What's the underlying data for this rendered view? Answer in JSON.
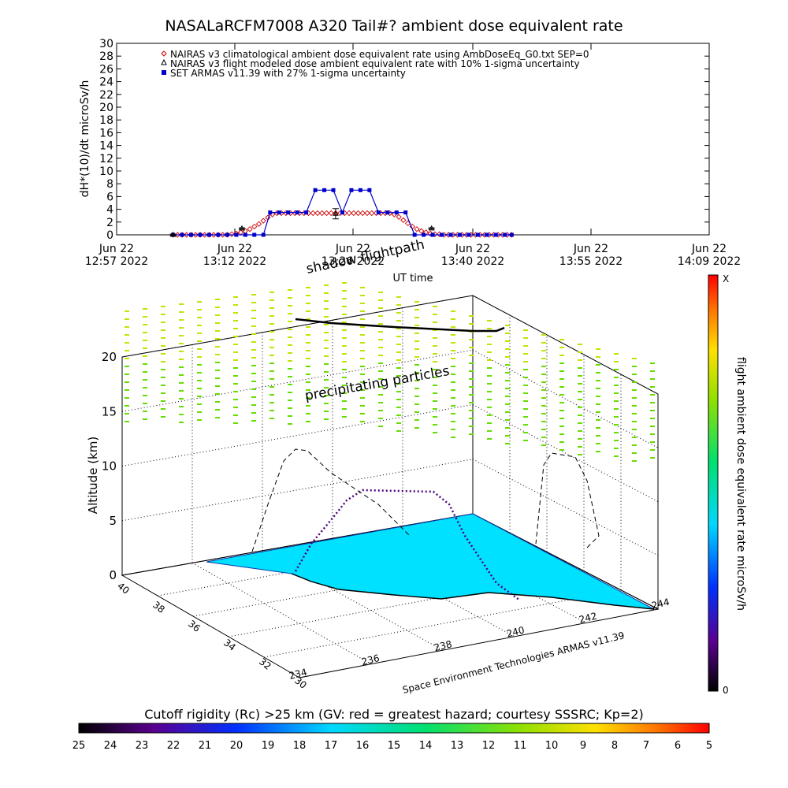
{
  "title": "NASALaRCFM7008  A320 Tail#? ambient dose equivalent rate",
  "chart_data": [
    {
      "type": "line",
      "ylabel": "dH*(10)/dt microSv/h",
      "xlabel": "UT time",
      "ylim": [
        0,
        30
      ],
      "yticks": [
        "0",
        "2",
        "4",
        "6",
        "8",
        "10",
        "12",
        "14",
        "16",
        "18",
        "20",
        "22",
        "24",
        "26",
        "28",
        "30"
      ],
      "xticks": [
        {
          "date": "Jun 22",
          "time": "12:57 2022"
        },
        {
          "date": "Jun 22",
          "time": "13:12 2022"
        },
        {
          "date": "Jun 22",
          "time": "13:26 2022"
        },
        {
          "date": "Jun 22",
          "time": "13:40 2022"
        },
        {
          "date": "Jun 22",
          "time": "13:55 2022"
        },
        {
          "date": "Jun 22",
          "time": "14:09 2022"
        }
      ],
      "legend": [
        {
          "label": "NAIRAS v3 climatological ambient dose equivalent rate using AmbDoseEq_G0.txt SEP=0",
          "marker": "diamond",
          "color": "#cc0000"
        },
        {
          "label": "NAIRAS v3 flight modeled dose ambient equivalent rate with 10% 1-sigma uncertainty",
          "marker": "triangle",
          "color": "#000000"
        },
        {
          "label": "SET ARMAS v11.39 with 27% 1-sigma uncertainty",
          "marker": "square",
          "color": "#0000cc"
        }
      ],
      "series": [
        {
          "name": "NAIRAS v3 climatological ambient dose equivalent rate using AmbDoseEq_G0.txt SEP=0",
          "x": [
            13.0,
            13.08,
            13.16,
            13.24,
            13.32,
            13.4,
            13.48,
            13.56,
            13.64,
            13.72,
            13.8,
            13.88,
            13.96,
            14.04,
            14.12,
            14.2,
            14.28,
            14.36,
            14.44,
            14.52,
            14.6,
            14.68,
            14.76,
            14.84,
            14.92,
            15.0,
            15.08,
            15.16,
            15.24,
            15.32,
            15.4,
            15.48,
            15.56,
            15.64,
            15.72,
            15.8,
            15.88,
            15.96,
            16.04,
            16.12,
            16.2,
            16.28,
            16.36,
            16.44,
            16.52,
            16.6,
            16.68,
            16.76,
            16.84,
            16.92,
            17.0,
            17.08,
            17.16,
            17.24,
            17.32,
            17.4,
            17.48,
            17.56,
            17.64,
            17.72,
            17.8,
            17.88,
            17.96,
            18.04,
            18.12,
            18.2,
            18.28,
            18.36,
            18.44,
            18.52,
            18.6,
            18.68,
            18.76,
            18.84,
            18.92,
            19.0
          ],
          "values": [
            0,
            0,
            0,
            0,
            0,
            0,
            0,
            0,
            0,
            0,
            0,
            0,
            0,
            0.1,
            0.2,
            0.4,
            0.6,
            0.9,
            1.3,
            1.7,
            2.2,
            2.7,
            3.2,
            3.4,
            3.4,
            3.4,
            3.4,
            3.4,
            3.4,
            3.4,
            3.4,
            3.4,
            3.4,
            3.4,
            3.4,
            3.4,
            3.4,
            3.4,
            3.4,
            3.4,
            3.4,
            3.4,
            3.4,
            3.4,
            3.4,
            3.4,
            3.4,
            3.4,
            3.4,
            3.2,
            2.8,
            2.3,
            1.8,
            1.3,
            0.9,
            0.6,
            0.4,
            0.2,
            0.1,
            0.1,
            0,
            0,
            0,
            0,
            0,
            0,
            0,
            0,
            0,
            0,
            0,
            0,
            0,
            0,
            0,
            0
          ]
        },
        {
          "name": "NAIRAS v3 flight modeled dose ambient equivalent rate with 10% 1-sigma uncertainty",
          "x": [
            13.0,
            14.22,
            15.88,
            17.58
          ],
          "values": [
            0,
            1.0,
            3.3,
            1.0
          ],
          "error": [
            0.1,
            0.1,
            0.8,
            0.1
          ]
        },
        {
          "name": "SET ARMAS v11.39 with 27% 1-sigma uncertainty",
          "x": [
            13.0,
            13.16,
            13.32,
            13.48,
            13.64,
            13.8,
            13.96,
            14.12,
            14.28,
            14.44,
            14.6,
            14.72,
            14.88,
            15.04,
            15.2,
            15.36,
            15.52,
            15.68,
            15.84,
            16.0,
            16.16,
            16.32,
            16.48,
            16.64,
            16.8,
            16.96,
            17.12,
            17.28,
            17.44,
            17.6,
            17.76,
            17.92,
            18.08,
            18.24,
            18.4,
            18.56,
            18.72,
            18.88,
            19.0
          ],
          "values": [
            0,
            0,
            0,
            0,
            0,
            0,
            0,
            0,
            0,
            0,
            0,
            3.5,
            3.5,
            3.5,
            3.5,
            3.5,
            7.0,
            7.0,
            7.0,
            3.5,
            7.0,
            7.0,
            7.0,
            3.5,
            3.5,
            3.5,
            3.5,
            0,
            0,
            0,
            0,
            0,
            0,
            0,
            0,
            0,
            0,
            0,
            0
          ]
        }
      ],
      "xrange": [
        12.0,
        22.5
      ]
    },
    {
      "type": "3d-map",
      "zlabel": "Altitude (km)",
      "zticks": [
        "0",
        "5",
        "10",
        "15",
        "20"
      ],
      "lat_ticks": [
        "40",
        "38",
        "36",
        "34",
        "32",
        "30"
      ],
      "lon_ticks": [
        "234",
        "236",
        "238",
        "240",
        "242",
        "244"
      ],
      "annotations": [
        "shadow flightpath",
        "precipitating particles"
      ],
      "credit": "Space Environment Technologies ARMAS v11.39"
    }
  ],
  "colorbar_right": {
    "label": "flight ambient dose equivalent rate microSv/h",
    "max_label": "X",
    "min_label": "0"
  },
  "colorbar_bottom": {
    "label": "Cutoff rigidity (Rc) >25 km (GV: red = greatest hazard; courtesy SSSRC; Kp=2)",
    "ticks": [
      "25",
      "24",
      "23",
      "22",
      "21",
      "20",
      "19",
      "18",
      "17",
      "16",
      "15",
      "14",
      "13",
      "12",
      "11",
      "10",
      "9",
      "8",
      "7",
      "6",
      "5"
    ]
  },
  "colors": {
    "land": "#00e0ff",
    "diamond": "#cc0000",
    "armas": "#0000cc",
    "particles": "#66dd00"
  }
}
